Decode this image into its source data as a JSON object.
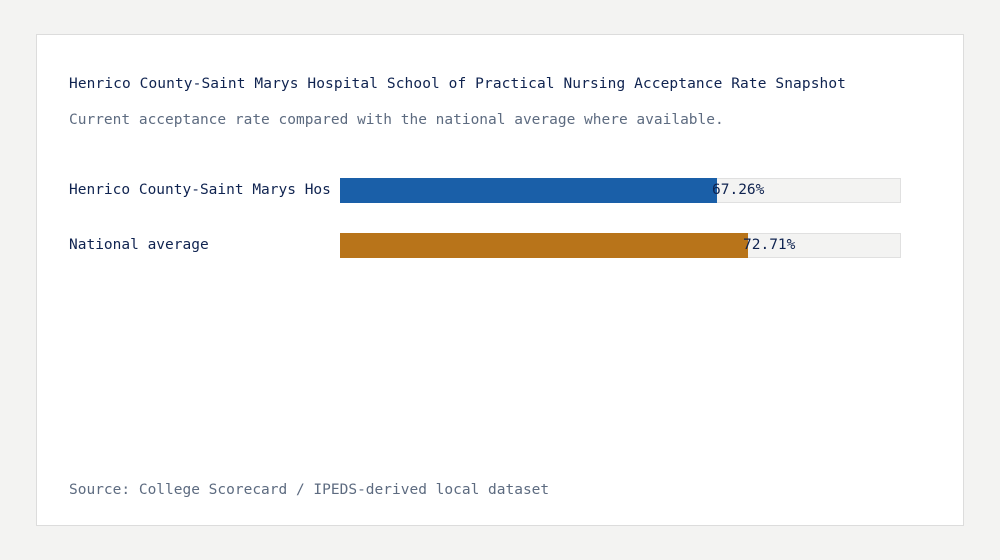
{
  "title": "Henrico County-Saint Marys Hospital School of Practical Nursing Acceptance Rate Snapshot",
  "subtitle": "Current acceptance rate compared with the national average where available.",
  "source": "Source: College Scorecard / IPEDS-derived local dataset",
  "colors": {
    "school": "#1a5fa8",
    "national": "#b8741a",
    "track": "#f3f3f2"
  },
  "chart_data": {
    "type": "bar",
    "orientation": "horizontal",
    "title": "Henrico County-Saint Marys Hospital School of Practical Nursing Acceptance Rate Snapshot",
    "subtitle": "Current acceptance rate compared with the national average where available.",
    "categories": [
      "Henrico County-Saint Marys Hospital School of Practical Nursing",
      "National average"
    ],
    "category_labels_shown": [
      "Henrico County-Saint Marys Hos",
      "National average"
    ],
    "values": [
      67.26,
      72.71
    ],
    "value_labels": [
      "67.26%",
      "72.71%"
    ],
    "unit": "%",
    "xlim": [
      0,
      100
    ],
    "grid": false,
    "legend": "none"
  }
}
